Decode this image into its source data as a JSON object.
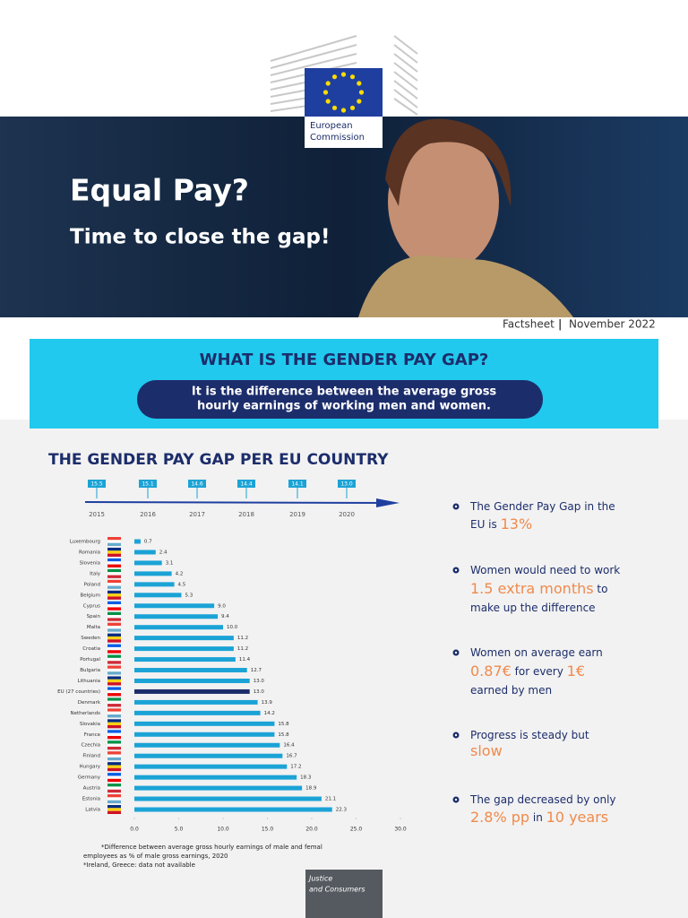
{
  "header": {
    "logo_text": [
      "European",
      "Commission"
    ],
    "title": "Equal Pay?",
    "subtitle": "Time to close the gap!",
    "doc_type": "Factsheet",
    "separator": "|",
    "date": "November 2022"
  },
  "question": {
    "title": "WHAT IS THE GENDER PAY GAP?",
    "answer": [
      "It is the difference between the average gross",
      "hourly earnings of working men and women."
    ]
  },
  "section_title": "THE GENDER PAY GAP PER EU COUNTRY",
  "timeline": {
    "years": [
      "2015",
      "2016",
      "2017",
      "2018",
      "2019",
      "2020"
    ],
    "values": [
      "15.5",
      "15.1",
      "14.6",
      "14.4",
      "14.1",
      "13.0"
    ]
  },
  "chart_data": {
    "type": "bar",
    "orientation": "horizontal",
    "categories": [
      "Luxembourg",
      "Romania",
      "Slovenia",
      "Italy",
      "Poland",
      "Belgium",
      "Cyprus",
      "Spain",
      "Malta",
      "Sweden",
      "Croatia",
      "Portugal",
      "Bulgaria",
      "Lithuania",
      "EU (27 countries)",
      "Denmark",
      "Netherlands",
      "Slovakia",
      "France",
      "Czechia",
      "Finland",
      "Hungary",
      "Germany",
      "Austria",
      "Estonia",
      "Latvia"
    ],
    "values": [
      0.7,
      2.4,
      3.1,
      4.2,
      4.5,
      5.3,
      9.0,
      9.4,
      10.0,
      11.2,
      11.2,
      11.4,
      12.7,
      13.0,
      13.0,
      13.9,
      14.2,
      15.8,
      15.8,
      16.4,
      16.7,
      17.2,
      18.3,
      18.9,
      21.1,
      22.3
    ],
    "value_labels": [
      "0.7",
      "2.4",
      "3.1",
      "4.2",
      "4.5",
      "5.3",
      "9.0",
      "9.4",
      "10.0",
      "11.2",
      "11.2",
      "11.4",
      "12.7",
      "13.0",
      "13.0",
      "13.9",
      "14.2",
      "15.8",
      "15.8",
      "16.4",
      "16.7",
      "17.2",
      "18.3",
      "18.9",
      "21.1",
      "22.3"
    ],
    "color": "#1ba3d6",
    "highlight_color": "#1c2d6b",
    "highlight_category": "EU (27 countries)",
    "xlim": [
      0,
      30
    ],
    "xticks": [
      {
        "value": 0,
        "label": "0.0"
      },
      {
        "value": 5,
        "label": "5.0"
      },
      {
        "value": 10,
        "label": "10.0"
      },
      {
        "value": 15,
        "label": "15.0"
      },
      {
        "value": 20,
        "label": "20.0"
      },
      {
        "value": 25,
        "label": "25.0"
      },
      {
        "value": 30,
        "label": "30.0"
      }
    ]
  },
  "footnotes": [
    "*Difference between average gross hourly earnings of male and femal",
    "employees as % of male gross earnings, 2020",
    "*Ireland, Greece: data not available"
  ],
  "facts": [
    [
      [
        {
          "text": "The Gender Pay Gap in the"
        }
      ],
      [
        {
          "text": "EU is "
        },
        {
          "text": "13%",
          "style": "big"
        }
      ]
    ],
    [
      [
        {
          "text": "Women would need to work"
        }
      ],
      [
        {
          "text": "1.5 extra months",
          "style": "big"
        },
        {
          "text": " to"
        }
      ],
      [
        {
          "text": "make up the difference"
        }
      ]
    ],
    [
      [
        {
          "text": "Women on average earn"
        }
      ],
      [
        {
          "text": "0.87€",
          "style": "big"
        },
        {
          "text": " for every "
        },
        {
          "text": "1€",
          "style": "big"
        }
      ],
      [
        {
          "text": "earned by men"
        }
      ]
    ],
    [
      [
        {
          "text": "Progress is steady but"
        }
      ],
      [
        {
          "text": "slow",
          "style": "big"
        }
      ]
    ],
    [
      [
        {
          "text": "The gap decreased by only"
        }
      ],
      [
        {
          "text": "2.8% pp",
          "style": "big"
        },
        {
          "text": " in "
        },
        {
          "text": "10 years",
          "style": "big"
        }
      ]
    ]
  ],
  "footer": [
    "Justice",
    "and Consumers"
  ]
}
